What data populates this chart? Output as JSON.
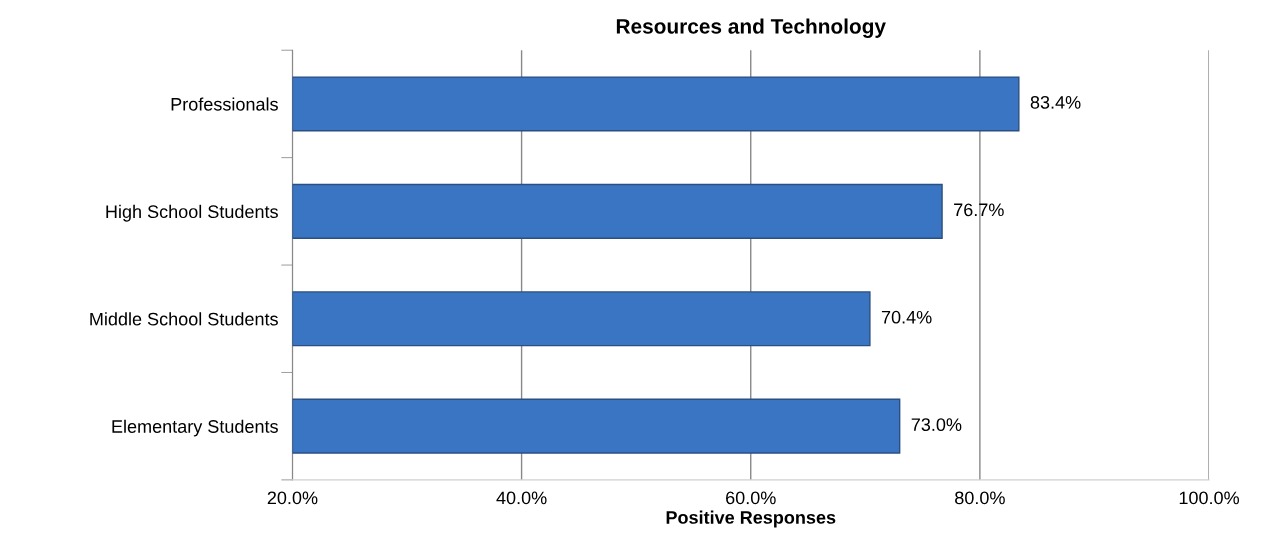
{
  "chart_data": {
    "type": "bar",
    "orientation": "horizontal",
    "title": "Resources and Technology",
    "xlabel": "Positive Responses",
    "categories": [
      "Professionals",
      "High School Students",
      "Middle School Students",
      "Elementary Students"
    ],
    "values": [
      83.4,
      76.7,
      70.4,
      73.0
    ],
    "value_labels": [
      "83.4%",
      "76.7%",
      "70.4%",
      "73.0%"
    ],
    "color": "#3a75c4",
    "xlim": [
      20,
      100
    ],
    "xticks": [
      {
        "value": 20,
        "label": "20.0%"
      },
      {
        "value": 40,
        "label": "40.0%"
      },
      {
        "value": 60,
        "label": "60.0%"
      },
      {
        "value": 80,
        "label": "80.0%"
      },
      {
        "value": 100,
        "label": "100.0%"
      }
    ],
    "grid": "x",
    "legend": false
  }
}
